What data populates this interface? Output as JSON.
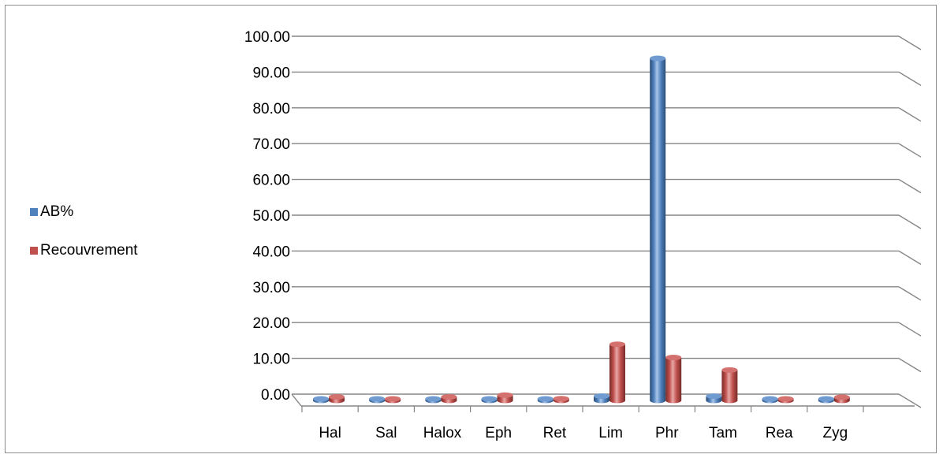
{
  "chart_data": {
    "type": "bar",
    "categories": [
      "Hal",
      "Sal",
      "Halox",
      "Eph",
      "Ret",
      "Lim",
      "Phr",
      "Tam",
      "Rea",
      "Zyg"
    ],
    "series": [
      {
        "name": "AB%",
        "color": "#4f81bd",
        "values": [
          0.4,
          0.2,
          0.3,
          0.3,
          0.2,
          1.2,
          95.6,
          1.2,
          0.2,
          0.4
        ]
      },
      {
        "name": "Recouvrement",
        "color": "#c0504d",
        "values": [
          1.0,
          0.4,
          1.0,
          1.5,
          0.5,
          15.7,
          12.0,
          8.5,
          0.2,
          0.9
        ]
      }
    ],
    "yticks": [
      "0.00",
      "10.00",
      "20.00",
      "30.00",
      "40.00",
      "50.00",
      "60.00",
      "70.00",
      "80.00",
      "90.00",
      "100.00"
    ],
    "ylim": [
      0,
      100
    ],
    "grid": true,
    "legend_position": "left",
    "title": "",
    "xlabel": "",
    "ylabel": ""
  }
}
